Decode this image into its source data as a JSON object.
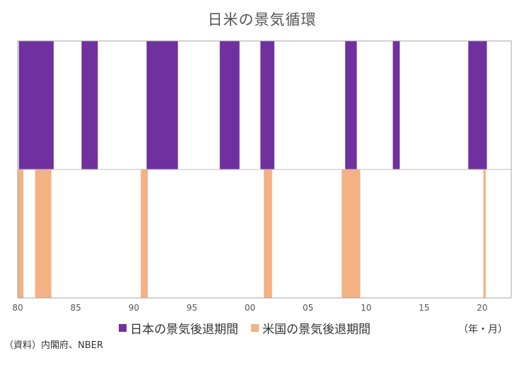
{
  "title": "日米の景気循環",
  "unit_label": "（年・月）",
  "source": "（資料）内閣府、NBER",
  "legend": {
    "japan": "日本の景気後退期間",
    "us": "米国の景気後退期間"
  },
  "colors": {
    "japan": "#7030a0",
    "us": "#f4b183",
    "frame": "#a6a6a6",
    "divider": "#bfbfbf"
  },
  "chart_data": {
    "type": "bar",
    "x_range": [
      1980.0,
      2022.5
    ],
    "x_ticks": [
      {
        "value": 1980,
        "label": "80"
      },
      {
        "value": 1985,
        "label": "85"
      },
      {
        "value": 1990,
        "label": "90"
      },
      {
        "value": 1995,
        "label": "95"
      },
      {
        "value": 2000,
        "label": "00"
      },
      {
        "value": 2005,
        "label": "05"
      },
      {
        "value": 2010,
        "label": "10"
      },
      {
        "value": 2015,
        "label": "15"
      },
      {
        "value": 2020,
        "label": "20"
      }
    ],
    "series": [
      {
        "name": "日本の景気後退期間",
        "periods": [
          {
            "start": 1980.1,
            "end": 1983.1
          },
          {
            "start": 1985.5,
            "end": 1986.9
          },
          {
            "start": 1991.1,
            "end": 1993.8
          },
          {
            "start": 1997.4,
            "end": 1999.1
          },
          {
            "start": 2000.9,
            "end": 2002.1
          },
          {
            "start": 2008.2,
            "end": 2009.2
          },
          {
            "start": 2012.3,
            "end": 2012.9
          },
          {
            "start": 2018.8,
            "end": 2020.4
          }
        ]
      },
      {
        "name": "米国の景気後退期間",
        "periods": [
          {
            "start": 1980.0,
            "end": 1980.5
          },
          {
            "start": 1981.5,
            "end": 1982.9
          },
          {
            "start": 1990.6,
            "end": 1991.2
          },
          {
            "start": 2001.2,
            "end": 2001.9
          },
          {
            "start": 2007.9,
            "end": 2009.5
          },
          {
            "start": 2020.1,
            "end": 2020.3
          }
        ]
      }
    ]
  }
}
